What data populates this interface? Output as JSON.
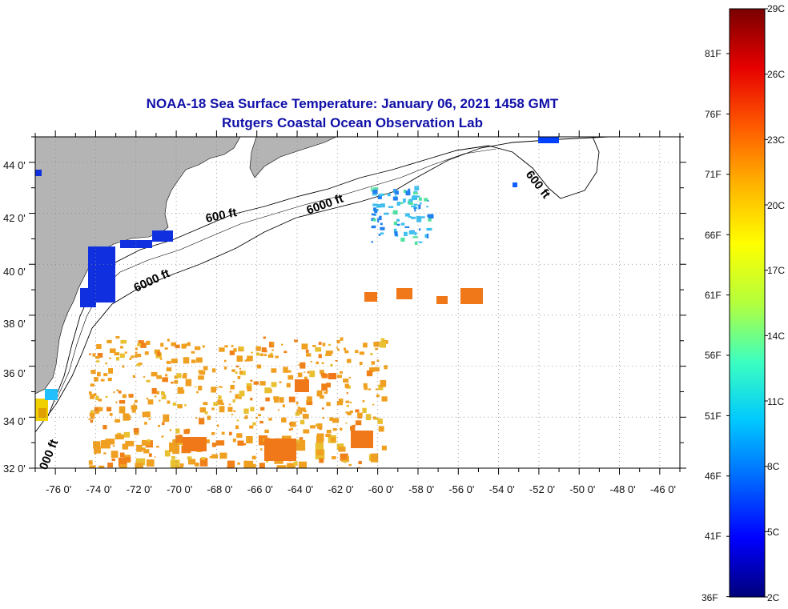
{
  "title": {
    "line1": "NOAA-18 Sea Surface Temperature:  January 06, 2021 1458 GMT",
    "line2": "Rutgers Coastal Ocean Observation Lab"
  },
  "map": {
    "lon_min": -77,
    "lon_max": -45,
    "lat_min": 32,
    "lat_max": 45,
    "lat_ticks": [
      "44 0'",
      "42 0'",
      "40 0'",
      "38 0'",
      "36 0'",
      "34 0'",
      "32 0'"
    ],
    "lon_ticks": [
      "-76 0'",
      "-74 0'",
      "-72 0'",
      "-70 0'",
      "-68 0'",
      "-66 0'",
      "-64 0'",
      "-62 0'",
      "-60 0'",
      "-58 0'",
      "-56 0'",
      "-54 0'",
      "-52 0'",
      "-50 0'",
      "-48 0'",
      "-46 0'"
    ],
    "contour_labels": [
      "600 ft",
      "6000 ft",
      "6000 ft",
      "600 ft",
      "000 ft"
    ],
    "colors": {
      "land": "#b4b4b4",
      "frame": "#000000",
      "grid": "#888888"
    }
  },
  "colorbar": {
    "celsius_labels": [
      "29C",
      "26C",
      "23C",
      "20C",
      "17C",
      "14C",
      "11C",
      "8C",
      "5C",
      "2C"
    ],
    "fahrenheit_labels": [
      "81F",
      "76F",
      "71F",
      "66F",
      "61F",
      "56F",
      "51F",
      "46F",
      "41F",
      "36F"
    ],
    "celsius_min": 2,
    "celsius_max": 29,
    "colors_low_to_high": [
      "#00007a",
      "#0000ff",
      "#0068ff",
      "#00c8ff",
      "#3cffc0",
      "#b4ff3c",
      "#ffff00",
      "#ffb400",
      "#ff5a00",
      "#e60000",
      "#7a0000"
    ]
  }
}
